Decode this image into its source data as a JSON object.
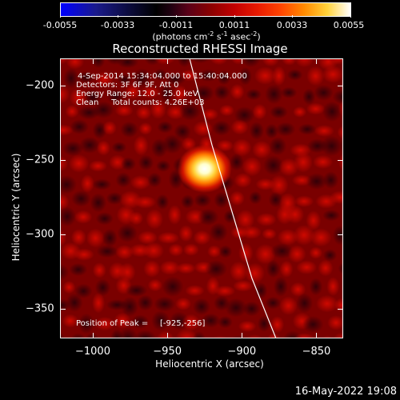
{
  "colors": {
    "background": "#000000",
    "foreground": "#ffffff",
    "limb_line": "#ffffff",
    "colormap": [
      "#0000ff",
      "#000000",
      "#8c0000",
      "#ff4400",
      "#ffd23a",
      "#ffffff"
    ]
  },
  "colorbar": {
    "tick_labels": [
      "-0.0055",
      "-0.0033",
      "-0.0011",
      "0.0011",
      "0.0033",
      "0.0055"
    ],
    "unit_text": "(photons cm",
    "unit_exp1": "-2",
    "unit_mid1": " s",
    "unit_exp2": "-1",
    "unit_mid2": " asec",
    "unit_exp3": "-2",
    "unit_end": ")"
  },
  "image": {
    "title": "Reconstructed RHESSI Image",
    "info_lines": [
      "4-Sep-2014 15:34:04.000 to 15:40:04.000",
      "Detectors: 3F 6F 9F, Att 0",
      "Energy Range: 12.0 - 25.0 keV",
      "Clean     Total counts: 4.26E+03"
    ],
    "peak_label": "Position of Peak =",
    "peak_value": "[-925,-256]"
  },
  "chart_data": {
    "type": "heatmap",
    "title": "Reconstructed RHESSI Image",
    "xlabel": "Heliocentric X (arcsec)",
    "ylabel": "Heliocentric Y (arcsec)",
    "xlim": [
      -1022,
      -832
    ],
    "ylim": [
      -370,
      -182
    ],
    "x_ticks": [
      -1000,
      -950,
      -900,
      -850
    ],
    "y_ticks": [
      -200,
      -250,
      -300,
      -350
    ],
    "x_tick_labels": [
      "−1000",
      "−950",
      "−900",
      "−850"
    ],
    "y_tick_labels": [
      "−200",
      "−250",
      "−300",
      "−350"
    ],
    "colorbar_range": [
      -0.0055,
      0.0055
    ],
    "peak": {
      "x": -925,
      "y": -256
    },
    "limb_line": [
      [
        -935,
        -182
      ],
      [
        -920,
        -240
      ],
      [
        -905,
        -290
      ],
      [
        -893,
        -330
      ],
      [
        -877,
        -370
      ]
    ]
  },
  "footer": {
    "timestamp": "16-May-2022 19:08"
  }
}
